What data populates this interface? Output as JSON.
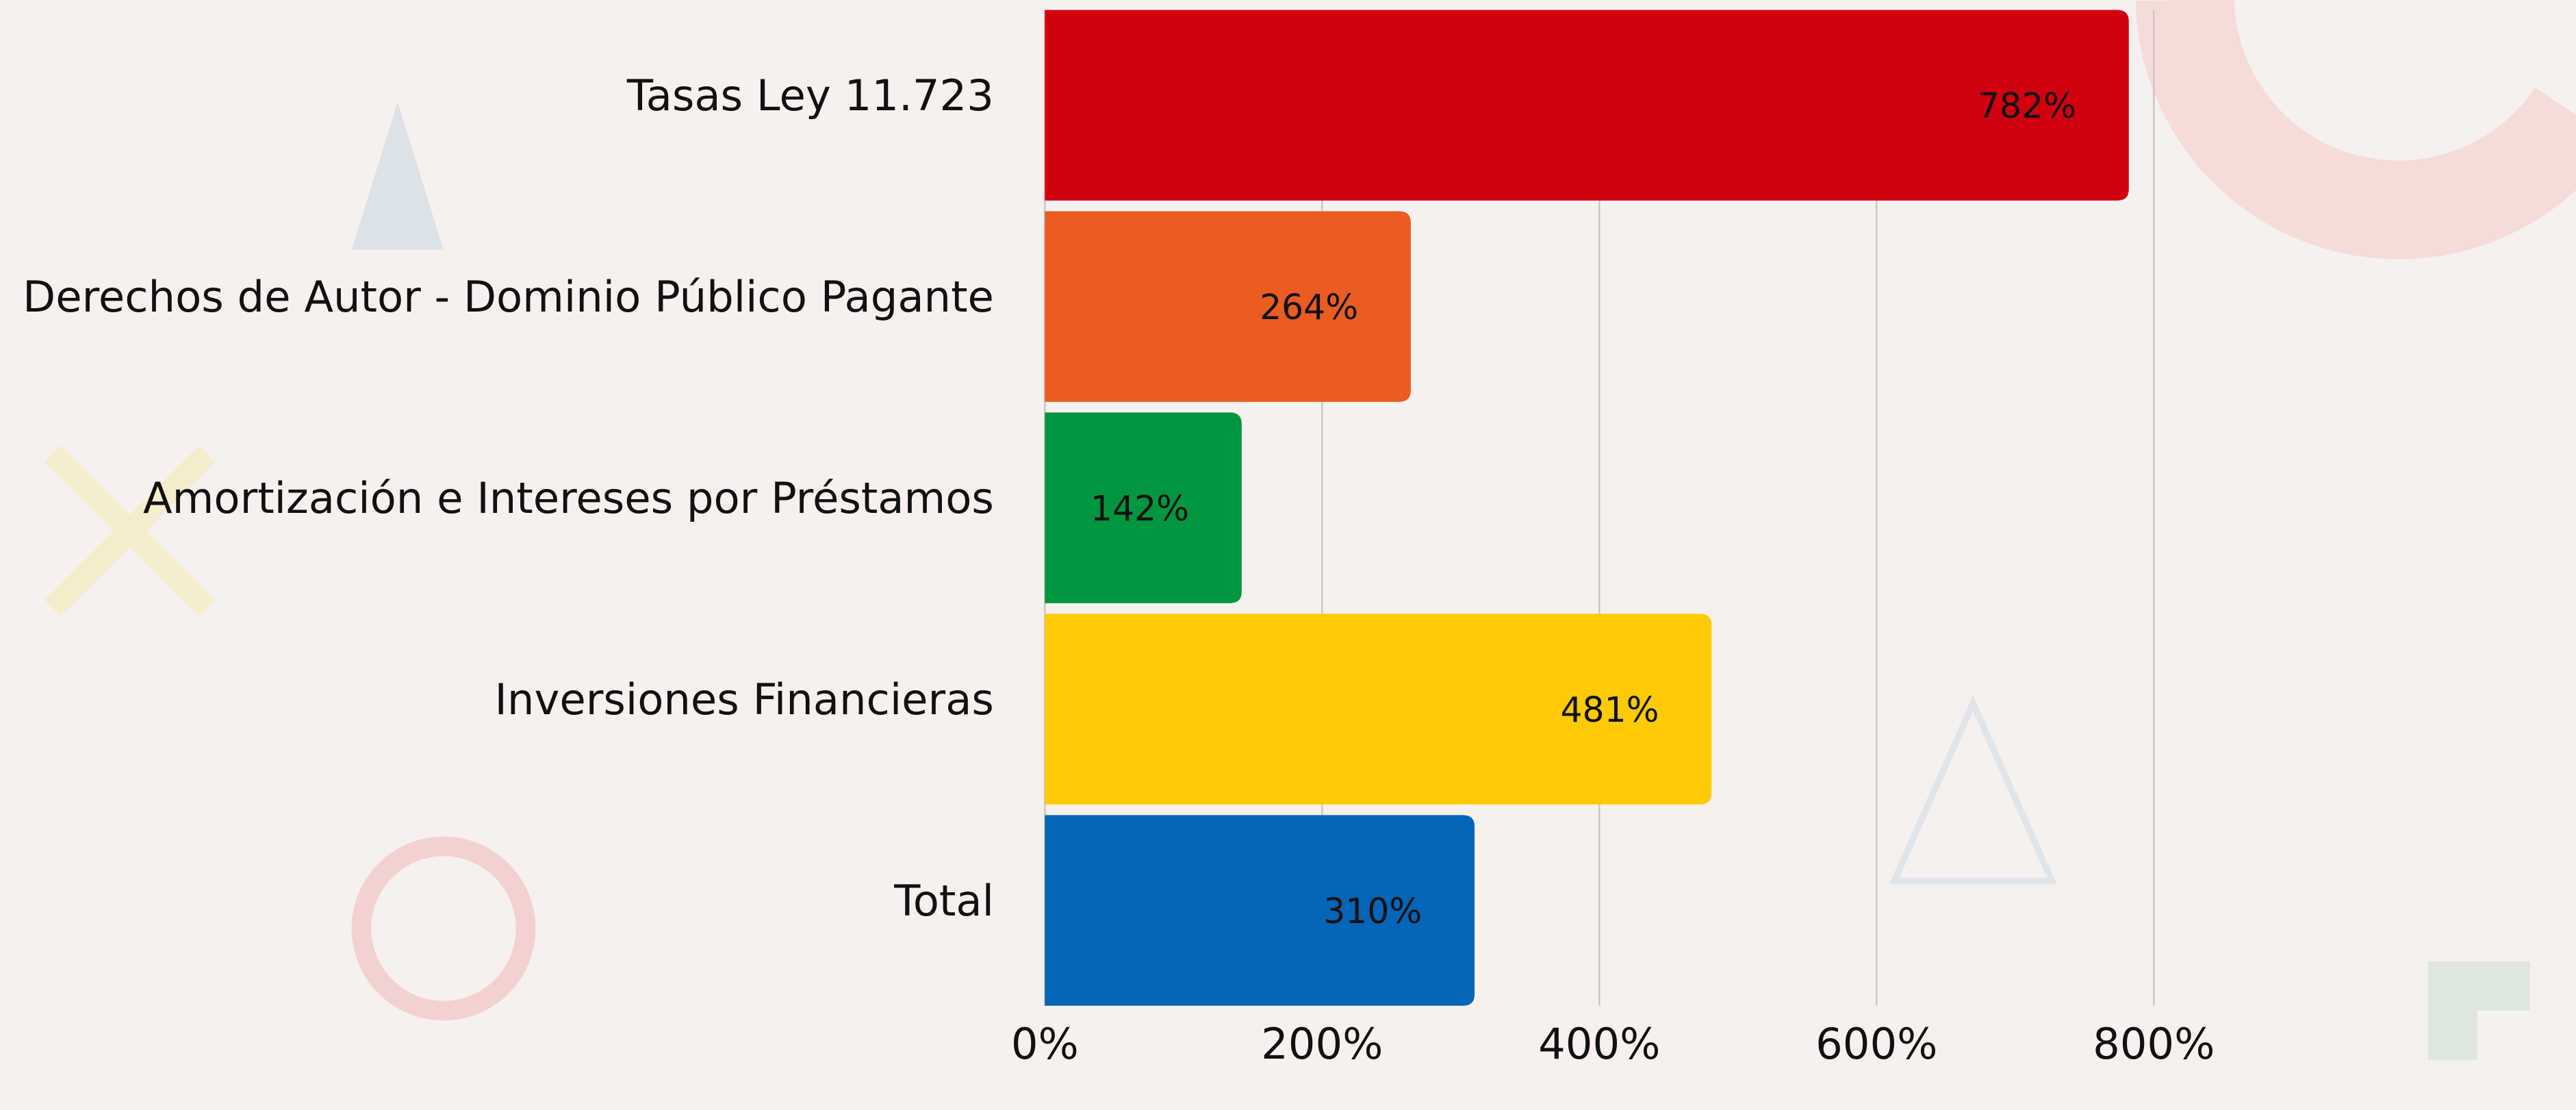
{
  "chart_data": {
    "type": "bar",
    "orientation": "horizontal",
    "categories": [
      "Tasas Ley 11.723",
      "Derechos de Autor - Dominio Público Pagante",
      "Amortización e Intereses por Préstamos",
      "Inversiones Financieras",
      "Total"
    ],
    "values": [
      782,
      264,
      142,
      481,
      310
    ],
    "value_labels": [
      "782%",
      "264%",
      "142%",
      "481%",
      "310%"
    ],
    "colors": [
      "#d0000f",
      "#eb5c20",
      "#029640",
      "#fecb02",
      "#0366b9"
    ],
    "xlim": [
      0,
      800
    ],
    "xticks": [
      {
        "value": 0,
        "label": "0%"
      },
      {
        "value": 200,
        "label": "200%"
      },
      {
        "value": 400,
        "label": "400%"
      },
      {
        "value": 600,
        "label": "600%"
      },
      {
        "value": 800,
        "label": "800%"
      }
    ],
    "grid": true
  }
}
